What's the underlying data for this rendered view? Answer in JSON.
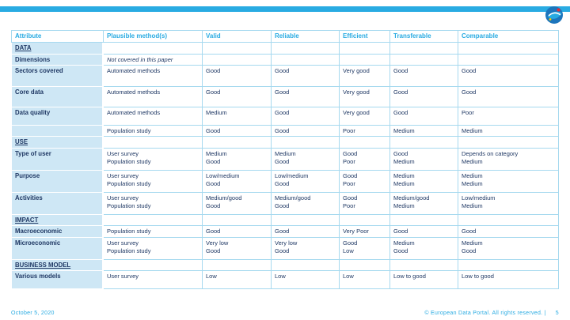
{
  "slide": {
    "footer": {
      "date": "October 5, 2020",
      "copyright": "© European Data Portal. All rights reserved.  |",
      "page": "5"
    },
    "logo": "european-data-portal-logo"
  },
  "colors": {
    "accent": "#29ABE2",
    "topbar": "#29B9E8",
    "navy": "#1F3864",
    "attr_bg": "#CEE7F5",
    "grid": "#A6D9EF"
  },
  "table": {
    "headers": [
      "Attribute",
      "Plausible method(s)",
      "Valid",
      "Reliable",
      "Efficient",
      "Transferable",
      "Comparable"
    ],
    "rows": [
      {
        "type": "section",
        "label": "DATA"
      },
      {
        "type": "note",
        "label": "Dimensions",
        "note": "Not covered in this paper"
      },
      {
        "type": "data",
        "label": "Sectors covered",
        "cells": [
          [
            "Automated methods"
          ],
          [
            "Good"
          ],
          [
            "Good"
          ],
          [
            "Very good"
          ],
          [
            "Good"
          ],
          [
            "Good"
          ]
        ]
      },
      {
        "type": "data",
        "label": "Core data",
        "cells": [
          [
            "Automated methods"
          ],
          [
            "Good"
          ],
          [
            "Good"
          ],
          [
            "Very good"
          ],
          [
            "Good"
          ],
          [
            "Good"
          ]
        ]
      },
      {
        "type": "data",
        "label": "Data quality",
        "cells": [
          [
            "Automated methods"
          ],
          [
            "Medium"
          ],
          [
            "Good"
          ],
          [
            "Very good"
          ],
          [
            "Good"
          ],
          [
            "Poor"
          ]
        ]
      },
      {
        "type": "data",
        "label": "",
        "cells": [
          [
            "Population study"
          ],
          [
            "Good"
          ],
          [
            "Good"
          ],
          [
            "Poor"
          ],
          [
            "Medium"
          ],
          [
            "Medium"
          ]
        ]
      },
      {
        "type": "section",
        "label": "USE"
      },
      {
        "type": "data",
        "label": "Type of user",
        "cells": [
          [
            "User survey",
            "Population study"
          ],
          [
            "Medium",
            "Good"
          ],
          [
            "Medium",
            "Good"
          ],
          [
            "Good",
            "Poor"
          ],
          [
            "Good",
            "Medium"
          ],
          [
            "Depends on category",
            "Medium"
          ]
        ]
      },
      {
        "type": "data",
        "label": "Purpose",
        "cells": [
          [
            "User survey",
            "Population study"
          ],
          [
            "Low/medium",
            "Good"
          ],
          [
            "Low/medium",
            "Good"
          ],
          [
            "Good",
            "Poor"
          ],
          [
            "Medium",
            "Medium"
          ],
          [
            "Medium",
            "Medium"
          ]
        ]
      },
      {
        "type": "data",
        "label": "Activities",
        "cells": [
          [
            "User survey",
            "Population study"
          ],
          [
            "Medium/good",
            "Good"
          ],
          [
            "Medium/good",
            "Good"
          ],
          [
            "Good",
            "Poor"
          ],
          [
            "Medium/good",
            "Medium"
          ],
          [
            "Low/medium",
            "Medium"
          ]
        ]
      },
      {
        "type": "section",
        "label": "IMPACT"
      },
      {
        "type": "data",
        "label": "Macroeconomic",
        "cells": [
          [
            "Population study"
          ],
          [
            "Good"
          ],
          [
            "Good"
          ],
          [
            "Very Poor"
          ],
          [
            "Good"
          ],
          [
            "Good"
          ]
        ]
      },
      {
        "type": "data",
        "label": "Microeconomic",
        "cells": [
          [
            "User survey",
            "Population study"
          ],
          [
            "Very low",
            "Good"
          ],
          [
            "Very low",
            "Good"
          ],
          [
            "Good",
            "Low"
          ],
          [
            "Medium",
            "Good"
          ],
          [
            "Medium",
            "Good"
          ]
        ]
      },
      {
        "type": "section",
        "label": "BUSINESS MODEL"
      },
      {
        "type": "data",
        "label": "Various models",
        "cells": [
          [
            "User survey"
          ],
          [
            "Low"
          ],
          [
            "Low"
          ],
          [
            "Low"
          ],
          [
            "Low to good"
          ],
          [
            "Low to good"
          ]
        ]
      }
    ]
  }
}
